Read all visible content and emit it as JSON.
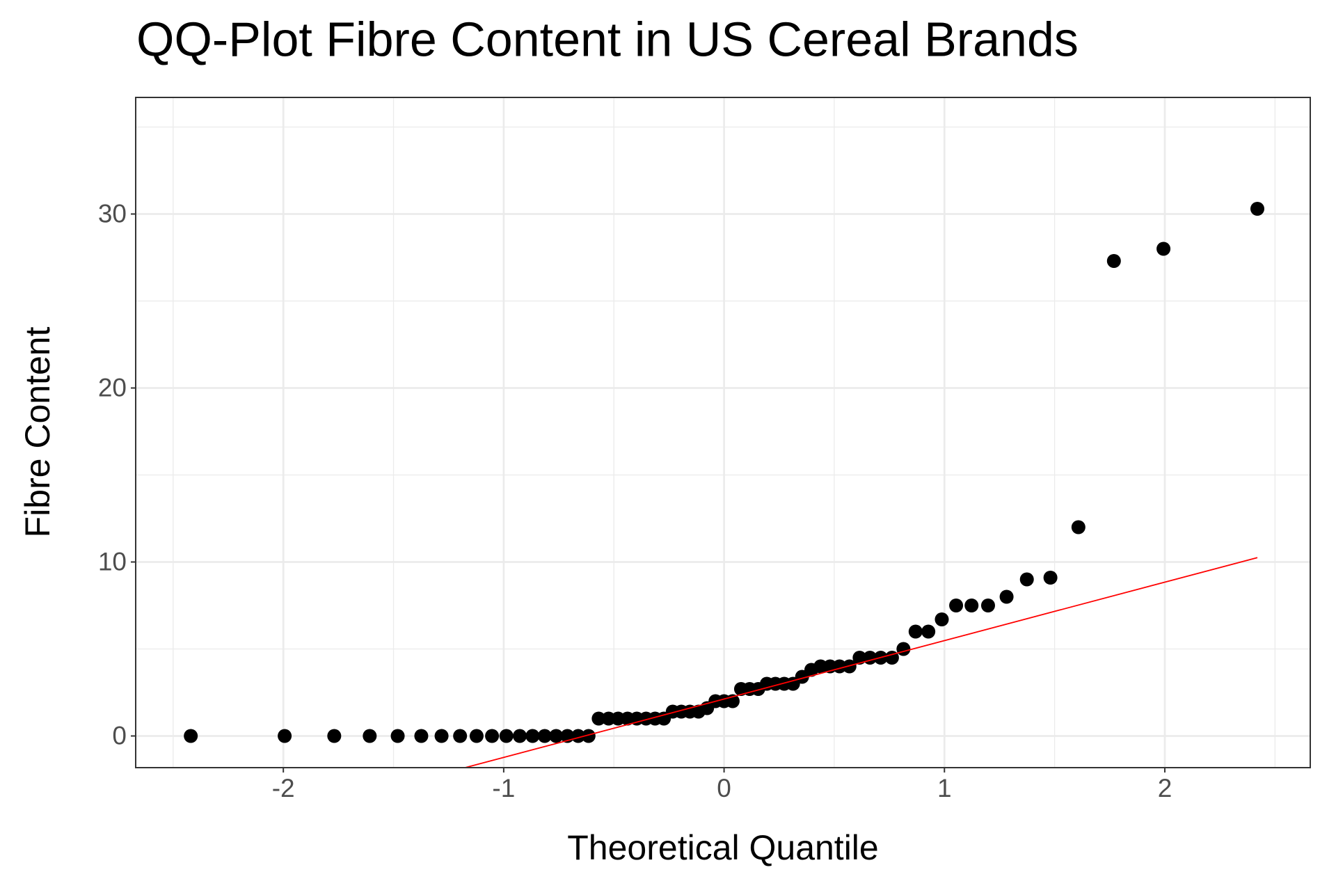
{
  "chart_data": {
    "type": "scatter",
    "title": "QQ-Plot Fibre Content in US Cereal Brands",
    "x_label": "Theoretical Quantile",
    "y_label": "Fibre Content",
    "x": [
      -2.42,
      -1.994,
      -1.769,
      -1.608,
      -1.481,
      -1.374,
      -1.282,
      -1.198,
      -1.123,
      -1.053,
      -0.988,
      -0.927,
      -0.869,
      -0.814,
      -0.762,
      -0.711,
      -0.662,
      -0.615,
      -0.569,
      -0.524,
      -0.481,
      -0.438,
      -0.396,
      -0.354,
      -0.313,
      -0.273,
      -0.233,
      -0.194,
      -0.155,
      -0.116,
      -0.077,
      -0.039,
      0,
      0.039,
      0.077,
      0.116,
      0.155,
      0.194,
      0.233,
      0.273,
      0.313,
      0.354,
      0.396,
      0.438,
      0.481,
      0.524,
      0.569,
      0.615,
      0.662,
      0.711,
      0.762,
      0.814,
      0.869,
      0.927,
      0.988,
      1.053,
      1.123,
      1.198,
      1.282,
      1.374,
      1.481,
      1.608,
      1.769,
      1.994,
      2.42
    ],
    "values": [
      0,
      0,
      0,
      0,
      0,
      0,
      0,
      0,
      0,
      0,
      0,
      0,
      0,
      0,
      0,
      0,
      0,
      0,
      1,
      1,
      1,
      1,
      1,
      1,
      1,
      1,
      1.4,
      1.4,
      1.4,
      1.4,
      1.6,
      2,
      2,
      2,
      2.7,
      2.7,
      2.7,
      3,
      3,
      3,
      3,
      3.4,
      3.8,
      4,
      4,
      4,
      4,
      4.5,
      4.5,
      4.5,
      4.5,
      5,
      6,
      6,
      6.7,
      7.5,
      7.5,
      7.5,
      8,
      9,
      9.1,
      12,
      27.3,
      28,
      30.3
    ],
    "color": "#000000",
    "reference_line": {
      "x": [
        -2.42,
        2.42
      ],
      "y": [
        -6.0,
        10.25
      ],
      "color": "#ff0000"
    },
    "xlim": [
      -2.67,
      2.66
    ],
    "ylim": [
      -1.82,
      36.7
    ],
    "xticks": [
      -2,
      -1,
      0,
      1,
      2
    ],
    "yticks": [
      0,
      10,
      20,
      30
    ],
    "grid": true,
    "minor_grid": true
  }
}
